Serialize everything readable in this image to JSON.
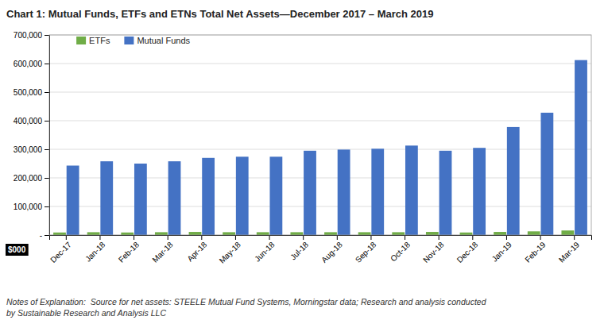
{
  "chart_data": {
    "type": "bar",
    "title": "Chart 1: Mutual Funds, ETFs and ETNs Total Net Assets—December 2017 – March 2019",
    "ylabel": "$000",
    "annotations": [
      "Notes of Explanation:  Source for net assets: STEELE Mutual Fund Systems, Morningstar data; Research and analysis conducted\nby Sustainable Research and Analysis LLC"
    ],
    "categories": [
      "Dec-17",
      "Jan-18",
      "Feb-18",
      "Mar-18",
      "Apr-18",
      "May-18",
      "Jun-18",
      "Jul-18",
      "Aug-18",
      "Sep-18",
      "Oct-18",
      "Nov-18",
      "Dec-18",
      "Jan-19",
      "Feb-19",
      "Mar-19"
    ],
    "series": [
      {
        "name": "ETFs",
        "color": "#70AD47",
        "values": [
          9000,
          10000,
          9000,
          10000,
          11000,
          10000,
          10000,
          10000,
          10000,
          10000,
          10000,
          11000,
          9000,
          11000,
          13000,
          16000
        ]
      },
      {
        "name": "Mutual Funds",
        "color": "#4472C4",
        "values": [
          243000,
          258000,
          250000,
          258000,
          270000,
          274000,
          274000,
          295000,
          299000,
          302000,
          313000,
          295000,
          305000,
          378000,
          428000,
          612000
        ]
      }
    ],
    "ylim": [
      0,
      700000
    ],
    "yticks": [
      {
        "value": 0,
        "label": "-"
      },
      {
        "value": 100000,
        "label": "100,000"
      },
      {
        "value": 200000,
        "label": "200,000"
      },
      {
        "value": 300000,
        "label": "300,000"
      },
      {
        "value": 400000,
        "label": "400,000"
      },
      {
        "value": 500000,
        "label": "500,000"
      },
      {
        "value": 600000,
        "label": "600,000"
      },
      {
        "value": 700000,
        "label": "700,000"
      }
    ],
    "grid": true,
    "legend": "upper left"
  }
}
